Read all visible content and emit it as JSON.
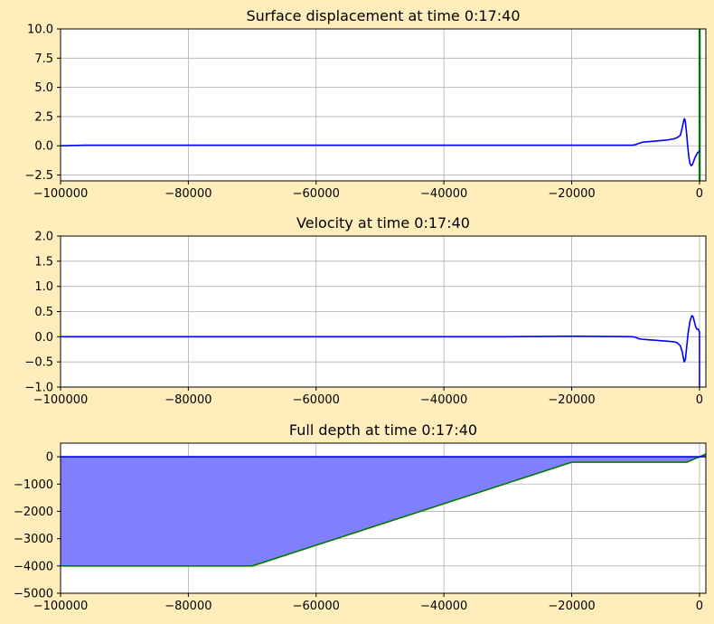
{
  "chart_data": [
    {
      "type": "line",
      "title": "Surface displacement at time 0:17:40",
      "xlabel": "",
      "ylabel": "",
      "xlim": [
        -100000,
        1000
      ],
      "ylim": [
        -3,
        10
      ],
      "grid": true,
      "x_ticks": [
        -100000,
        -80000,
        -60000,
        -40000,
        -20000,
        0
      ],
      "x_tick_labels": [
        "−100000",
        "−80000",
        "−60000",
        "−40000",
        "−20000",
        "0"
      ],
      "y_ticks": [
        -2.5,
        0.0,
        2.5,
        5.0,
        7.5,
        10.0
      ],
      "y_tick_labels": [
        "−2.5",
        "0.0",
        "2.5",
        "5.0",
        "7.5",
        "10.0"
      ],
      "series": [
        {
          "color": "#0000ff",
          "x": [
            -100000,
            -96000,
            -90000,
            -60000,
            -40000,
            -20000,
            -10500,
            -10000,
            -9500,
            -9000,
            -8000,
            -7000,
            -6000,
            -5000,
            -4000,
            -3500,
            -3000,
            -2800,
            -2600,
            -2400,
            -2300,
            -2200,
            -2100,
            -2000,
            -1900,
            -1700,
            -1500,
            -1300,
            -1100,
            -900,
            -700,
            -500,
            -300,
            -100,
            0
          ],
          "y": [
            0.0,
            0.05,
            0.05,
            0.05,
            0.05,
            0.05,
            0.05,
            0.1,
            0.2,
            0.3,
            0.35,
            0.4,
            0.45,
            0.5,
            0.6,
            0.7,
            0.9,
            1.3,
            1.8,
            2.3,
            2.3,
            2.0,
            1.5,
            1.0,
            0.3,
            -0.8,
            -1.5,
            -1.7,
            -1.6,
            -1.3,
            -1.0,
            -0.8,
            -0.6,
            -0.5,
            -0.4
          ]
        },
        {
          "color": "#007700",
          "x": [
            0,
            0,
            50,
            50
          ],
          "y": [
            -3,
            10,
            10,
            -3
          ]
        }
      ]
    },
    {
      "type": "line",
      "title": "Velocity at time 0:17:40",
      "xlabel": "",
      "ylabel": "",
      "xlim": [
        -100000,
        1000
      ],
      "ylim": [
        -1,
        2
      ],
      "grid": true,
      "x_ticks": [
        -100000,
        -80000,
        -60000,
        -40000,
        -20000,
        0
      ],
      "x_tick_labels": [
        "−100000",
        "−80000",
        "−60000",
        "−40000",
        "−20000",
        "0"
      ],
      "y_ticks": [
        -1.0,
        -0.5,
        0.0,
        0.5,
        1.0,
        1.5,
        2.0
      ],
      "y_tick_labels": [
        "−1.0",
        "−0.5",
        "0.0",
        "0.5",
        "1.0",
        "1.5",
        "2.0"
      ],
      "series": [
        {
          "color": "#0000ff",
          "x": [
            -100000,
            -60000,
            -30000,
            -20000,
            -10500,
            -10000,
            -9500,
            -9000,
            -8000,
            -7000,
            -6000,
            -5000,
            -4000,
            -3500,
            -3000,
            -2700,
            -2400,
            -2200,
            -2000,
            -1800,
            -1500,
            -1200,
            -1000,
            -800,
            -600,
            -400,
            -200,
            0,
            0,
            50
          ],
          "y": [
            0.0,
            0.0,
            0.0,
            0.01,
            0.0,
            -0.01,
            -0.04,
            -0.05,
            -0.06,
            -0.07,
            -0.08,
            -0.09,
            -0.1,
            -0.12,
            -0.18,
            -0.3,
            -0.5,
            -0.45,
            -0.2,
            0.05,
            0.3,
            0.42,
            0.4,
            0.3,
            0.2,
            0.15,
            0.15,
            0.1,
            -1.0,
            -1.0
          ]
        }
      ]
    },
    {
      "type": "area",
      "title": "Full depth at time 0:17:40",
      "xlabel": "",
      "ylabel": "",
      "xlim": [
        -100000,
        1000
      ],
      "ylim": [
        -5000,
        500
      ],
      "grid": true,
      "x_ticks": [
        -100000,
        -80000,
        -60000,
        -40000,
        -20000,
        0
      ],
      "x_tick_labels": [
        "−100000",
        "−80000",
        "−60000",
        "−40000",
        "−20000",
        "0"
      ],
      "y_ticks": [
        -5000,
        -4000,
        -3000,
        -2000,
        -1000,
        0
      ],
      "y_tick_labels": [
        "−5000",
        "−4000",
        "−3000",
        "−2000",
        "−1000",
        "0"
      ],
      "series": [
        {
          "color": "#0000ff",
          "fill": "#8080ff",
          "x": [
            -100000,
            -20000,
            -2000,
            0,
            1000
          ],
          "y": [
            0,
            0,
            0,
            0,
            0
          ]
        },
        {
          "color": "#007700",
          "x": [
            -100000,
            -70000,
            -20000,
            -2000,
            1000
          ],
          "y": [
            -4000,
            -4000,
            -200,
            -200,
            100
          ]
        }
      ]
    }
  ]
}
